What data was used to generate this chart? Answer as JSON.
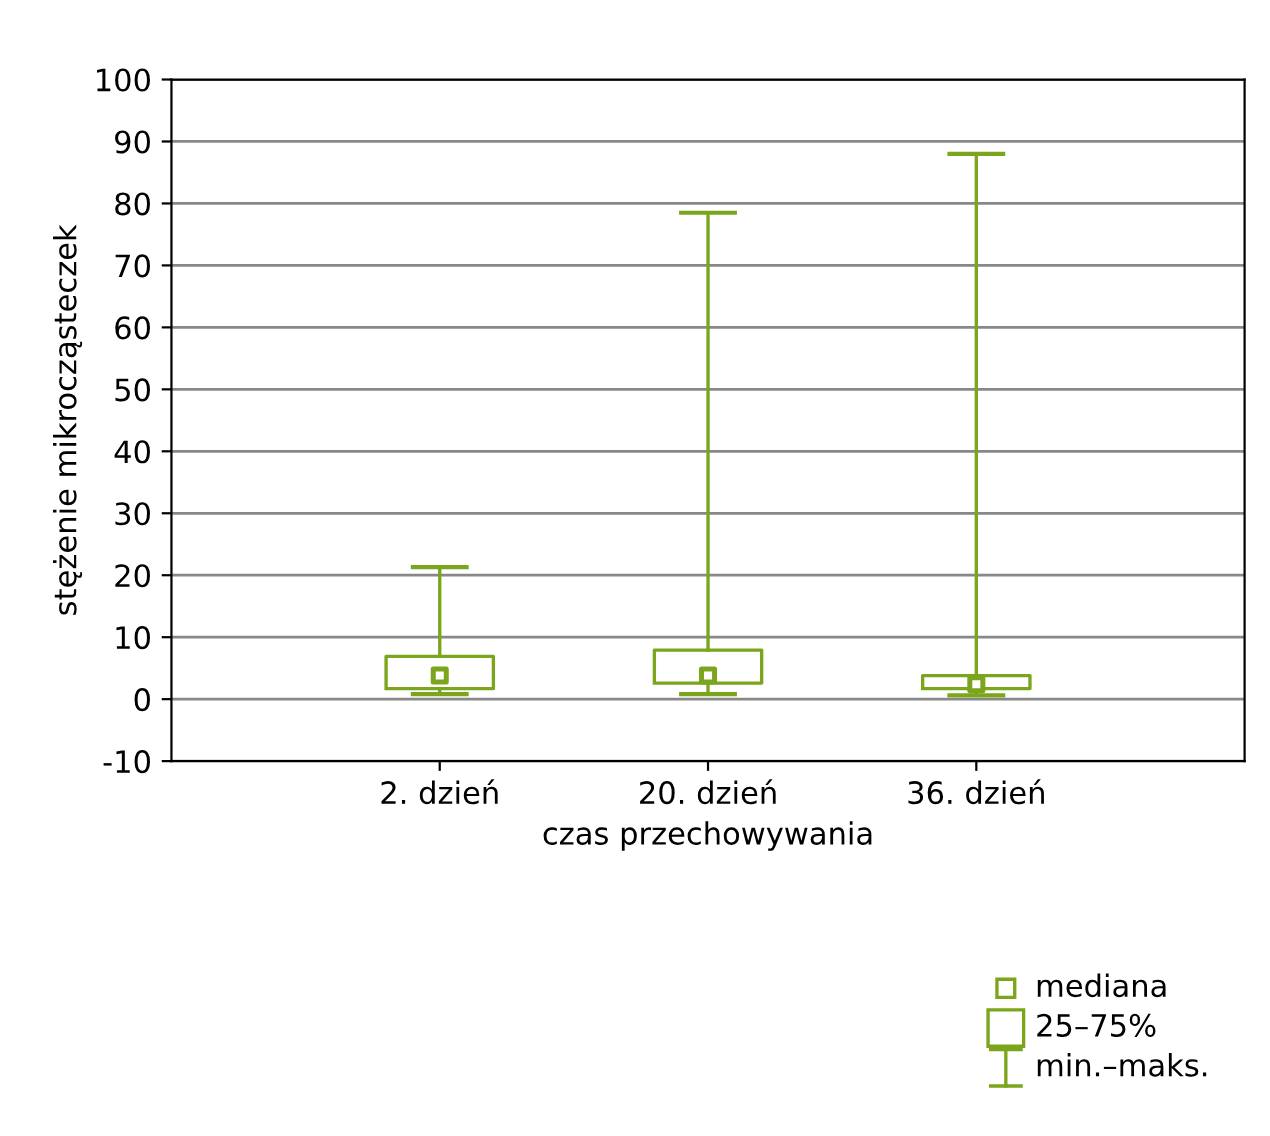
{
  "chart_data": {
    "type": "box",
    "xlabel": "czas przechowywania",
    "ylabel": "stężenie mikrocząsteczek",
    "categories": [
      "2. dzień",
      "20. dzień",
      "36. dzień"
    ],
    "series": [
      {
        "color": "#7aa51c",
        "boxes": [
          {
            "low": 0.8,
            "q1": 1.7,
            "median": 3.8,
            "q3": 6.9,
            "high": 21.3
          },
          {
            "low": 0.8,
            "q1": 2.6,
            "median": 3.8,
            "q3": 7.9,
            "high": 78.5
          },
          {
            "low": 0.6,
            "q1": 1.7,
            "median": 2.4,
            "q3": 3.8,
            "high": 88
          }
        ]
      }
    ],
    "annotations": [
      "mediana",
      "25–75%",
      "min.–maks."
    ],
    "ylim": [
      -10,
      100
    ],
    "yticks": [
      -10,
      0,
      10,
      20,
      30,
      40,
      50,
      60,
      70,
      80,
      90,
      100
    ],
    "grid": "y",
    "marker": "square"
  }
}
